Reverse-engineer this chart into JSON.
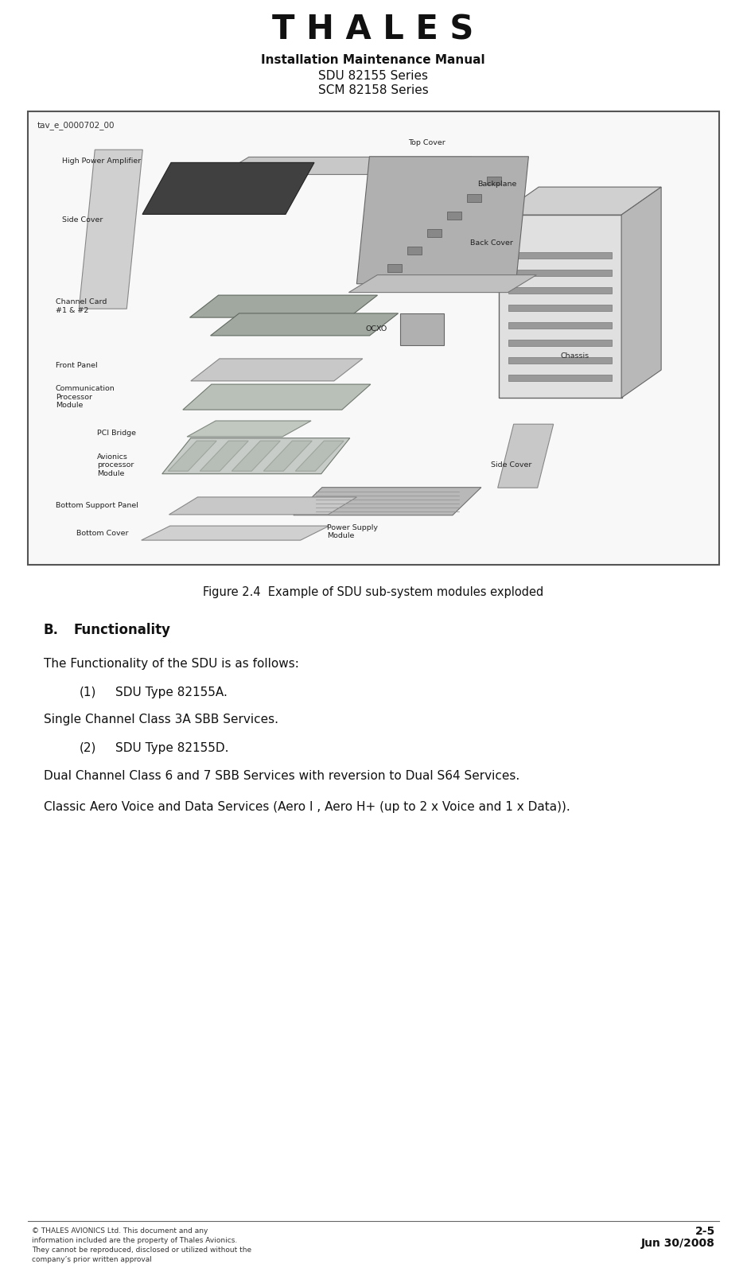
{
  "bg_color": "#ffffff",
  "title_thales": "T H A L E S",
  "header_line1": "Installation Maintenance Manual",
  "header_line2": "SDU 82155 Series",
  "header_line3": "SCM 82158 Series",
  "figure_caption": "Figure 2.4  Example of SDU sub-system modules exploded",
  "section_b_label": "B.",
  "section_b_title": "Functionality",
  "para1": "The Functionality of the SDU is as follows:",
  "item1_num": "(1)",
  "item1_text": "SDU Type 82155A.",
  "item1_sub": "Single Channel Class 3A SBB Services.",
  "item2_num": "(2)",
  "item2_text": "SDU Type 82155D.",
  "item2_sub1": "Dual Channel Class 6 and 7 SBB Services with reversion to Dual S64 Services.",
  "item2_sub2": "Classic Aero Voice and Data Services (Aero I , Aero H+ (up to 2 x Voice and 1 x Data)).",
  "footer_left_line1": "© THALES AVIONICS Ltd. This document and any",
  "footer_left_line2": "information included are the property of Thales Avionics.",
  "footer_left_line3": "They cannot be reproduced, disclosed or utilized without the",
  "footer_left_line4": "company’s prior written approval",
  "footer_right_line1": "2-5",
  "footer_right_line2": "Jun 30/2008",
  "diagram_tag": "tav_e_0000702_00"
}
